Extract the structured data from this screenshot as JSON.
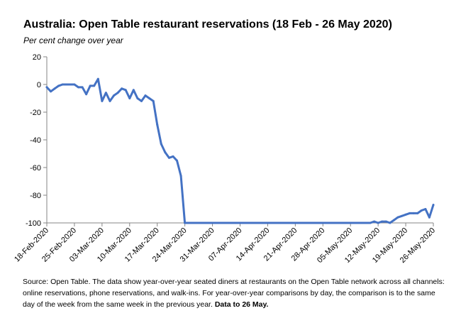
{
  "chart_data": {
    "type": "line",
    "title": "Australia: Open Table restaurant reservations (18 Feb - 26 May 2020)",
    "subtitle": "Per cent change over year",
    "xlabel": "",
    "ylabel": "",
    "ylim": [
      -100,
      20
    ],
    "y_ticks": [
      20,
      0,
      -20,
      -40,
      -60,
      -80,
      -100
    ],
    "x_start_date": "18-Feb-2020",
    "x_end_date": "26-May-2020",
    "x_tick_labels": [
      "18-Feb-2020",
      "25-Feb-2020",
      "03-Mar-2020",
      "10-Mar-2020",
      "17-Mar-2020",
      "24-Mar-2020",
      "31-Mar-2020",
      "07-Apr-2020",
      "14-Apr-2020",
      "21-Apr-2020",
      "28-Apr-2020",
      "05-May-2020",
      "12-May-2020",
      "19-May-2020",
      "26-May-2020"
    ],
    "grid": false,
    "legend": "none",
    "series": [
      {
        "color": "#4472C4",
        "points": [
          [
            "18-Feb-2020",
            -2
          ],
          [
            "19-Feb-2020",
            -5
          ],
          [
            "20-Feb-2020",
            -3
          ],
          [
            "21-Feb-2020",
            -1
          ],
          [
            "22-Feb-2020",
            0
          ],
          [
            "23-Feb-2020",
            0
          ],
          [
            "24-Feb-2020",
            0
          ],
          [
            "25-Feb-2020",
            0
          ],
          [
            "26-Feb-2020",
            -2
          ],
          [
            "27-Feb-2020",
            -2
          ],
          [
            "28-Feb-2020",
            -7
          ],
          [
            "29-Feb-2020",
            -1
          ],
          [
            "01-Mar-2020",
            -1
          ],
          [
            "02-Mar-2020",
            4
          ],
          [
            "03-Mar-2020",
            -12
          ],
          [
            "04-Mar-2020",
            -6
          ],
          [
            "05-Mar-2020",
            -12
          ],
          [
            "06-Mar-2020",
            -8
          ],
          [
            "07-Mar-2020",
            -6
          ],
          [
            "08-Mar-2020",
            -3
          ],
          [
            "09-Mar-2020",
            -4
          ],
          [
            "10-Mar-2020",
            -10
          ],
          [
            "11-Mar-2020",
            -4
          ],
          [
            "12-Mar-2020",
            -10
          ],
          [
            "13-Mar-2020",
            -12
          ],
          [
            "14-Mar-2020",
            -8
          ],
          [
            "15-Mar-2020",
            -10
          ],
          [
            "16-Mar-2020",
            -12
          ],
          [
            "17-Mar-2020",
            -29
          ],
          [
            "18-Mar-2020",
            -43
          ],
          [
            "19-Mar-2020",
            -49
          ],
          [
            "20-Mar-2020",
            -53
          ],
          [
            "21-Mar-2020",
            -52
          ],
          [
            "22-Mar-2020",
            -55
          ],
          [
            "23-Mar-2020",
            -66
          ],
          [
            "24-Mar-2020",
            -100
          ],
          [
            "25-Mar-2020",
            -100
          ],
          [
            "26-Mar-2020",
            -100
          ],
          [
            "27-Mar-2020",
            -100
          ],
          [
            "28-Mar-2020",
            -100
          ],
          [
            "29-Mar-2020",
            -100
          ],
          [
            "30-Mar-2020",
            -100
          ],
          [
            "31-Mar-2020",
            -100
          ],
          [
            "01-Apr-2020",
            -100
          ],
          [
            "02-Apr-2020",
            -100
          ],
          [
            "03-Apr-2020",
            -100
          ],
          [
            "04-Apr-2020",
            -100
          ],
          [
            "05-Apr-2020",
            -100
          ],
          [
            "06-Apr-2020",
            -100
          ],
          [
            "07-Apr-2020",
            -100
          ],
          [
            "08-Apr-2020",
            -100
          ],
          [
            "09-Apr-2020",
            -100
          ],
          [
            "10-Apr-2020",
            -100
          ],
          [
            "11-Apr-2020",
            -100
          ],
          [
            "12-Apr-2020",
            -100
          ],
          [
            "13-Apr-2020",
            -100
          ],
          [
            "14-Apr-2020",
            -100
          ],
          [
            "15-Apr-2020",
            -100
          ],
          [
            "16-Apr-2020",
            -100
          ],
          [
            "17-Apr-2020",
            -100
          ],
          [
            "18-Apr-2020",
            -100
          ],
          [
            "19-Apr-2020",
            -100
          ],
          [
            "20-Apr-2020",
            -100
          ],
          [
            "21-Apr-2020",
            -100
          ],
          [
            "22-Apr-2020",
            -100
          ],
          [
            "23-Apr-2020",
            -100
          ],
          [
            "24-Apr-2020",
            -100
          ],
          [
            "25-Apr-2020",
            -100
          ],
          [
            "26-Apr-2020",
            -100
          ],
          [
            "27-Apr-2020",
            -100
          ],
          [
            "28-Apr-2020",
            -100
          ],
          [
            "29-Apr-2020",
            -100
          ],
          [
            "30-Apr-2020",
            -100
          ],
          [
            "01-May-2020",
            -100
          ],
          [
            "02-May-2020",
            -100
          ],
          [
            "03-May-2020",
            -100
          ],
          [
            "04-May-2020",
            -100
          ],
          [
            "05-May-2020",
            -100
          ],
          [
            "06-May-2020",
            -100
          ],
          [
            "07-May-2020",
            -100
          ],
          [
            "08-May-2020",
            -100
          ],
          [
            "09-May-2020",
            -100
          ],
          [
            "10-May-2020",
            -100
          ],
          [
            "11-May-2020",
            -99
          ],
          [
            "12-May-2020",
            -100
          ],
          [
            "13-May-2020",
            -99
          ],
          [
            "14-May-2020",
            -99
          ],
          [
            "15-May-2020",
            -100
          ],
          [
            "16-May-2020",
            -98
          ],
          [
            "17-May-2020",
            -96
          ],
          [
            "18-May-2020",
            -95
          ],
          [
            "19-May-2020",
            -94
          ],
          [
            "20-May-2020",
            -93
          ],
          [
            "21-May-2020",
            -93
          ],
          [
            "22-May-2020",
            -93
          ],
          [
            "23-May-2020",
            -91
          ],
          [
            "24-May-2020",
            -90
          ],
          [
            "25-May-2020",
            -96
          ],
          [
            "26-May-2020",
            -87
          ]
        ]
      }
    ]
  },
  "source": {
    "text": "Source: Open Table.  The data show year-over-year seated diners at restaurants on the Open Table network across all channels: online reservations, phone reservations, and walk-ins. For year-over-year comparisons by day, the comparison is to the same day of the week from the same week in the previous year. ",
    "bold_text": "Data to 26 May."
  }
}
